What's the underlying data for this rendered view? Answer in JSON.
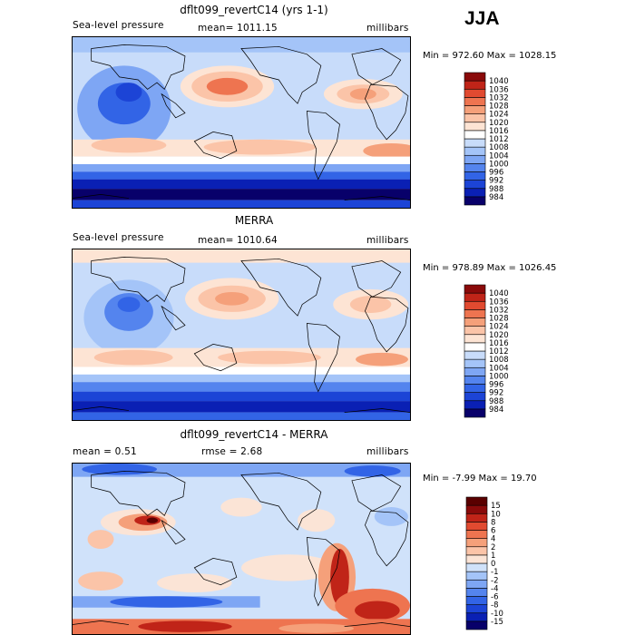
{
  "season": "JJA",
  "panels": [
    {
      "title": "dflt099_revertC14 (yrs 1-1)",
      "left_label": "Sea-level pressure",
      "center_label": "mean= 1011.15",
      "right_label": "millibars",
      "stats": "Min = 972.60 Max = 1028.15"
    },
    {
      "title": "MERRA",
      "left_label": "Sea-level pressure",
      "center_label": "mean= 1010.64",
      "right_label": "millibars",
      "stats": "Min = 978.89 Max = 1026.45"
    },
    {
      "title": "dflt099_revertC14 - MERRA",
      "left_label": "mean =   0.51",
      "center_label": "rmse =   2.68",
      "right_label": "millibars",
      "stats": "Min =  -7.99 Max =  19.70"
    }
  ],
  "chart_data": [
    {
      "type": "heatmap",
      "title": "dflt099_revertC14 (yrs 1-1)",
      "variable": "Sea-level pressure",
      "units": "millibars",
      "mean": 1011.15,
      "min": 972.6,
      "max": 1028.15,
      "levels": [
        984,
        988,
        992,
        996,
        1000,
        1004,
        1008,
        1012,
        1016,
        1020,
        1024,
        1028,
        1032,
        1036,
        1040
      ],
      "colors": [
        "#08006a",
        "#0a20b4",
        "#1c44d6",
        "#3264e6",
        "#5484ee",
        "#7ea6f4",
        "#a4c4f8",
        "#c8dcfa",
        "#ffffff",
        "#fde4d4",
        "#fbc4a8",
        "#f5a07a",
        "#ee7450",
        "#e14a30",
        "#c02418",
        "#8a0a0a"
      ]
    },
    {
      "type": "heatmap",
      "title": "MERRA",
      "variable": "Sea-level pressure",
      "units": "millibars",
      "mean": 1010.64,
      "min": 978.89,
      "max": 1026.45,
      "levels": [
        984,
        988,
        992,
        996,
        1000,
        1004,
        1008,
        1012,
        1016,
        1020,
        1024,
        1028,
        1032,
        1036,
        1040
      ],
      "colors": [
        "#08006a",
        "#0a20b4",
        "#1c44d6",
        "#3264e6",
        "#5484ee",
        "#7ea6f4",
        "#a4c4f8",
        "#c8dcfa",
        "#ffffff",
        "#fde4d4",
        "#fbc4a8",
        "#f5a07a",
        "#ee7450",
        "#e14a30",
        "#c02418",
        "#8a0a0a"
      ]
    },
    {
      "type": "heatmap",
      "title": "dflt099_revertC14 - MERRA",
      "units": "millibars",
      "mean": 0.51,
      "rmse": 2.68,
      "min": -7.99,
      "max": 19.7,
      "levels": [
        -15,
        -10,
        -8,
        -6,
        -4,
        -2,
        -1,
        0,
        1,
        2,
        4,
        6,
        8,
        10,
        15
      ],
      "colors": [
        "#08006a",
        "#0a20b4",
        "#1c44d6",
        "#3264e6",
        "#5484ee",
        "#7ea6f4",
        "#a4c4f8",
        "#d0e2fa",
        "#fbe4d6",
        "#fbc4a8",
        "#f5a07a",
        "#ee7450",
        "#e14a30",
        "#c02418",
        "#8a0a0a",
        "#5a0000"
      ]
    }
  ]
}
